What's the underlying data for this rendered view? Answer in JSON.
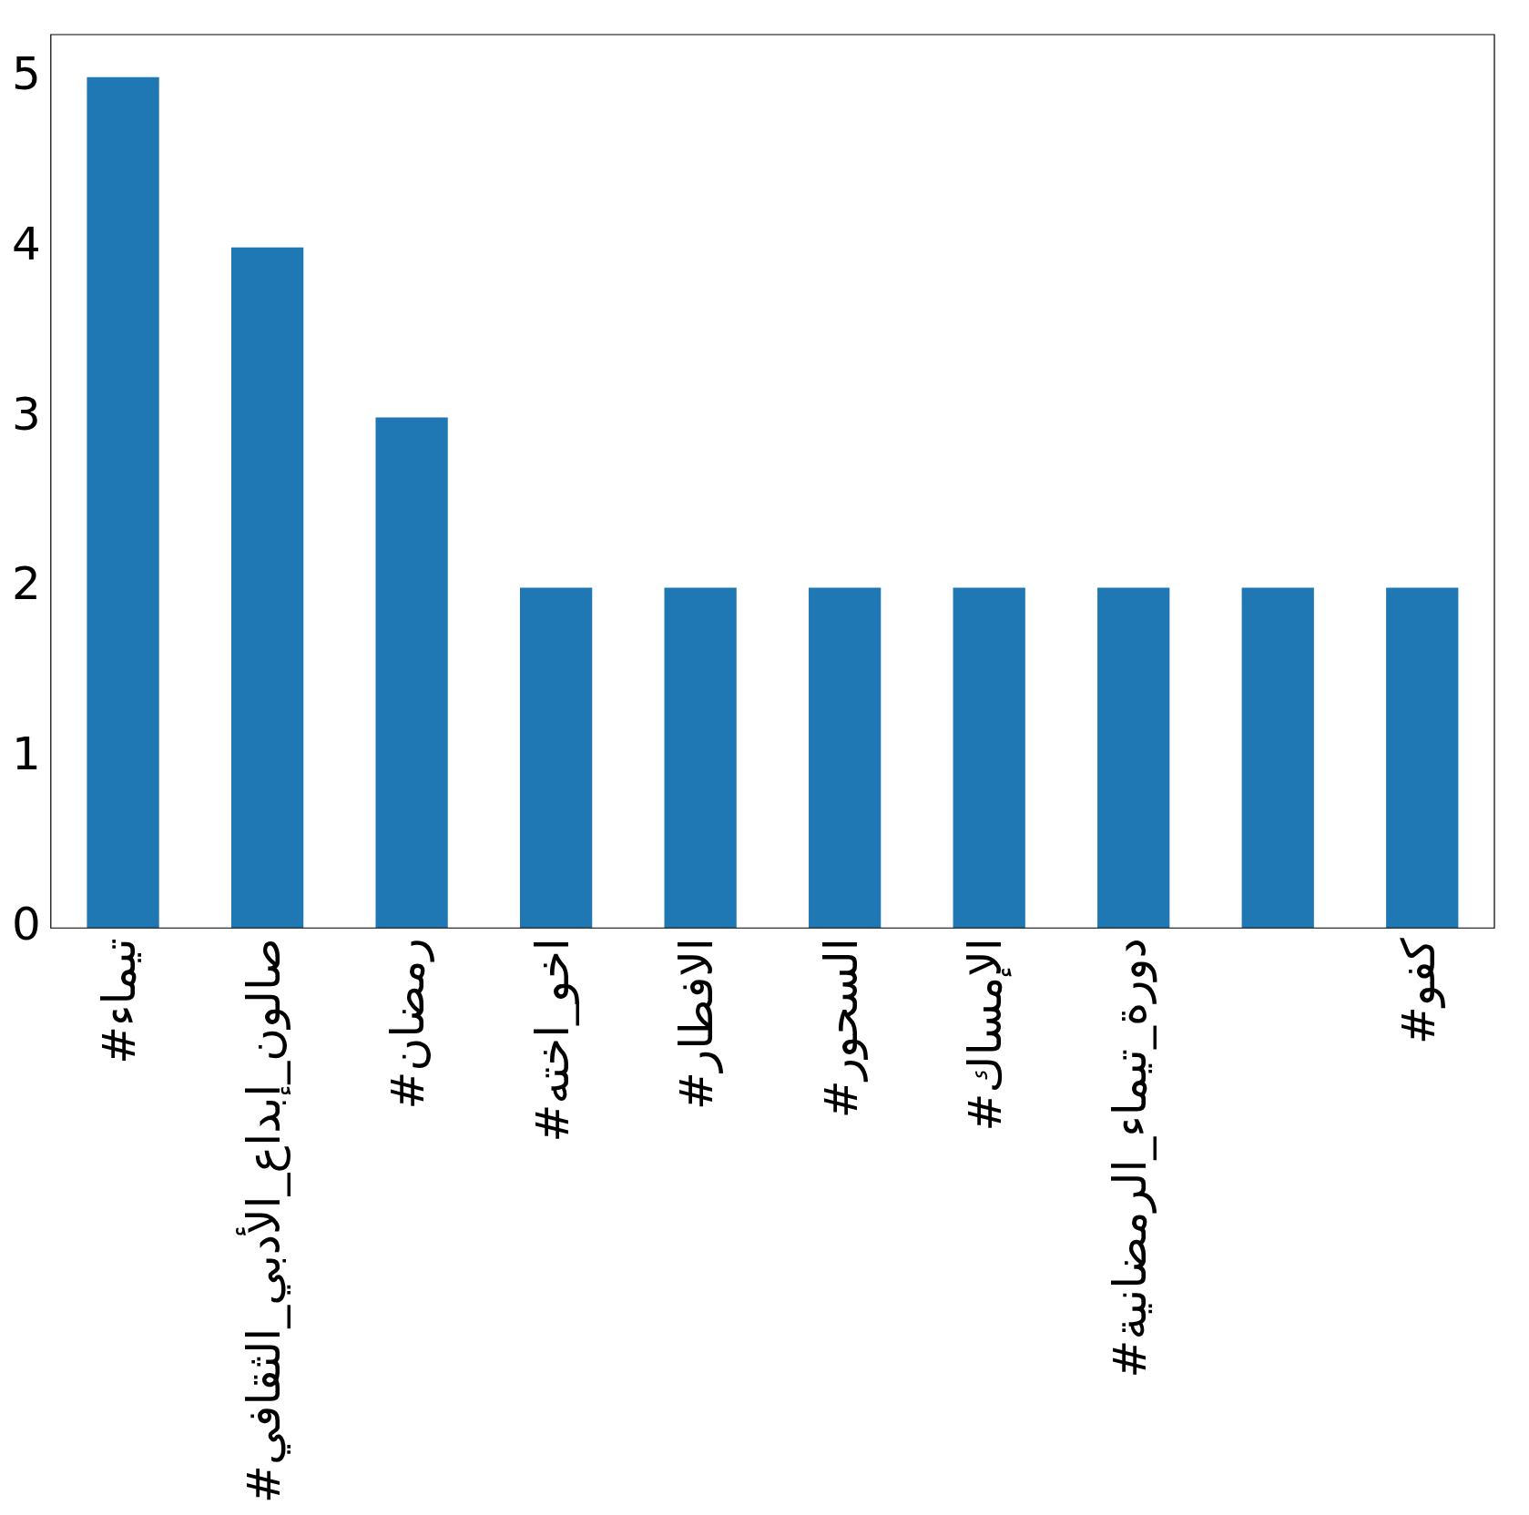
{
  "chart_data": {
    "type": "bar",
    "categories": [
      "#تيماء",
      "#صالون_إبداع_الأدبي_الثقافي",
      "#رمضان",
      "#اخو_اخته",
      "#الافطار",
      "#السحور",
      "#الإمساك",
      "#دورة_تيماء_الرمضانية",
      null,
      "#كفو"
    ],
    "values": [
      5,
      4,
      3,
      2,
      2,
      2,
      2,
      2,
      2,
      2
    ],
    "color": "#1f77b4",
    "ylim": [
      0,
      5.25
    ],
    "yticks": [
      0,
      1,
      2,
      3,
      4,
      5
    ],
    "grid": false,
    "legend": false
  }
}
